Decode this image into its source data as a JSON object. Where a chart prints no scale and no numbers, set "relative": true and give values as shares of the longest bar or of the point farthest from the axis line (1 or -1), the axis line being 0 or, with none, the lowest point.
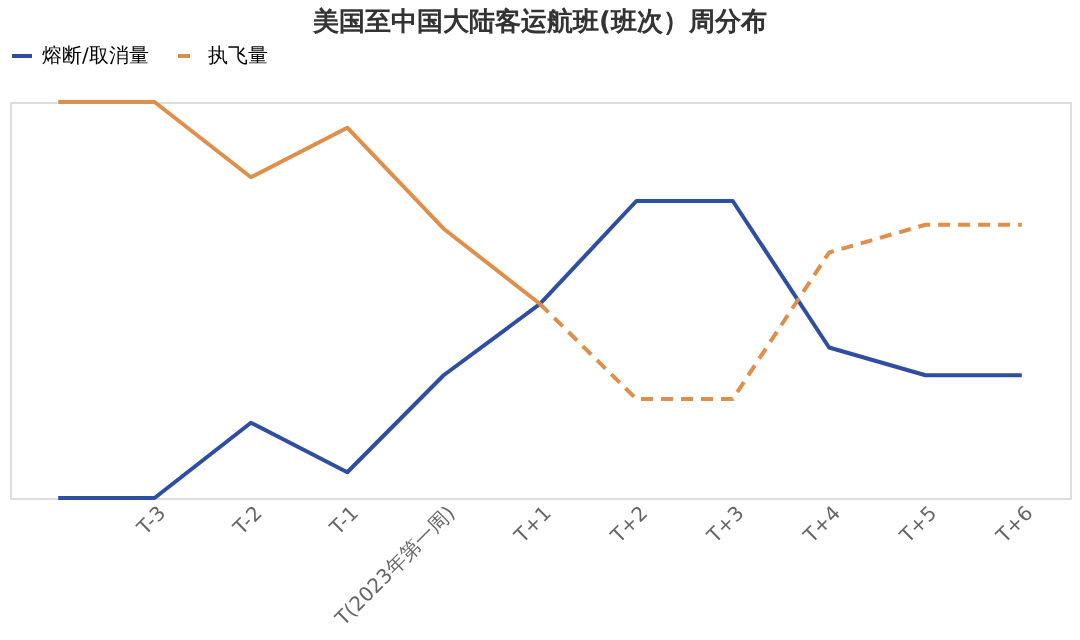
{
  "chart_data": {
    "type": "line",
    "title": "美国至中国大陆客运航班(班次）周分布",
    "relative": true,
    "legend": "top",
    "grid": false,
    "categories": [
      null,
      "T-3",
      "T-2",
      "T-1",
      "T(2023年第一周)",
      "T+1",
      "T+2",
      "T+3",
      "T+4",
      "T+5",
      "T+6"
    ],
    "series": [
      {
        "name": "熔断/取消量",
        "color": "#2e4ea3",
        "line_style": "solid",
        "values": [
          0,
          0,
          0.19,
          0.065,
          0.31,
          0.49,
          0.75,
          0.75,
          0.38,
          0.31,
          0.31
        ]
      },
      {
        "color": "#e08f4a",
        "line_style": "solid",
        "values": [
          1,
          1,
          0.81,
          0.935,
          0.68,
          0.49,
          null,
          null,
          null,
          null,
          null
        ]
      },
      {
        "name": "执飞量",
        "color": "#e08f4a",
        "line_style": "dashed",
        "values": [
          null,
          null,
          null,
          null,
          null,
          0.49,
          0.25,
          0.25,
          0.62,
          0.69,
          0.69
        ]
      }
    ]
  }
}
